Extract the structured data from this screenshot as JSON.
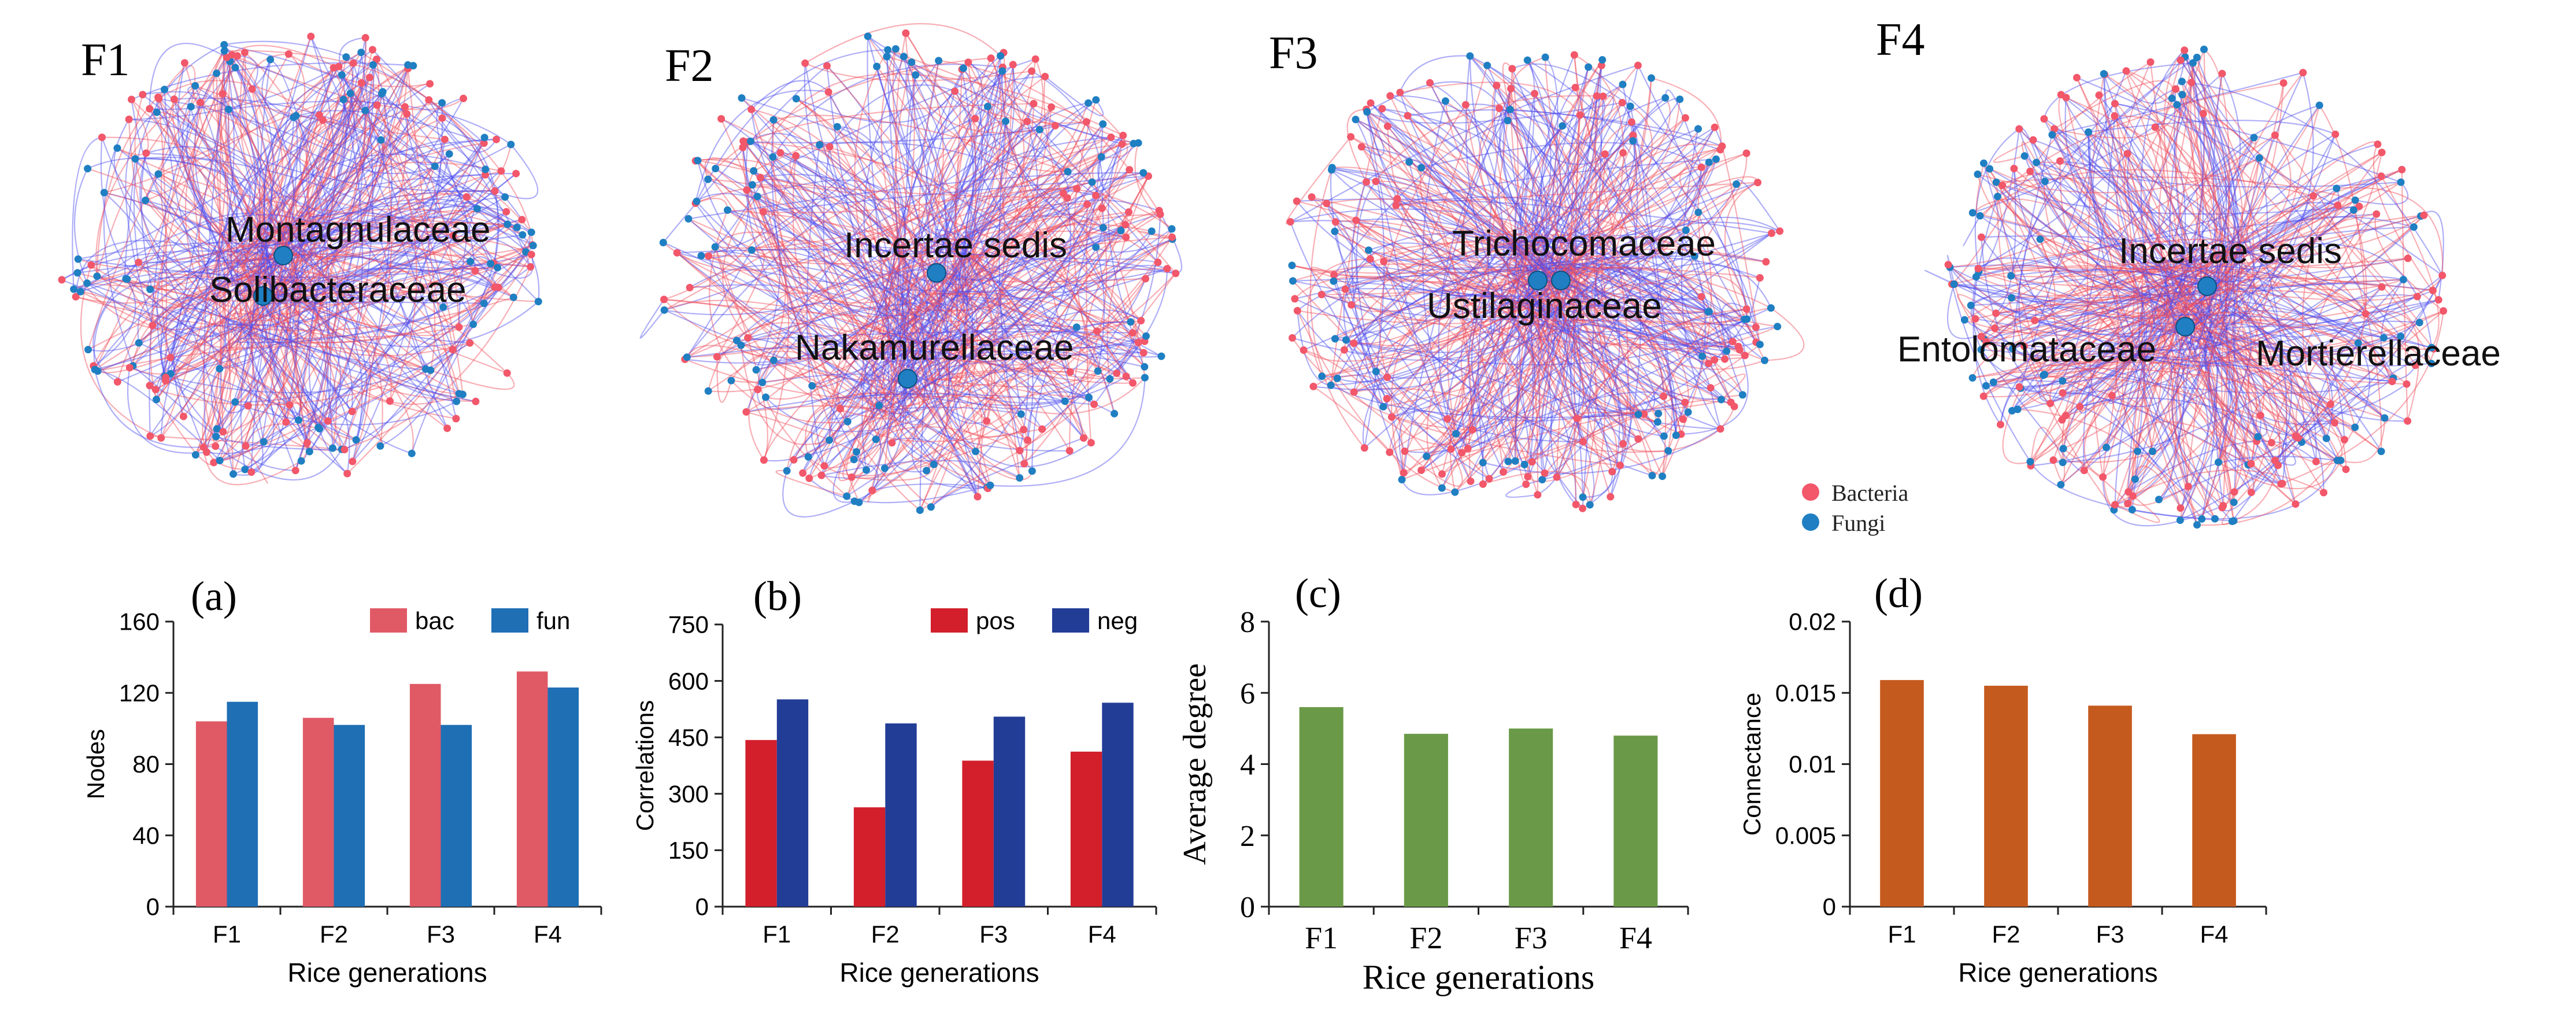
{
  "networks": {
    "panels": [
      {
        "label": "F1",
        "hubs": [
          "Montagnulaceae",
          "Solibacteraceae"
        ]
      },
      {
        "label": "F2",
        "hubs": [
          "Incertae sedis",
          "Nakamurellaceae"
        ]
      },
      {
        "label": "F3",
        "hubs": [
          "Trichocomaceae",
          "Ustilaginaceae"
        ]
      },
      {
        "label": "F4",
        "hubs": [
          "Incertae sedis",
          "Entolomataceae",
          "Mortierellaceae"
        ]
      }
    ],
    "legend": [
      {
        "label": "Bacteria",
        "color": "#f2576a"
      },
      {
        "label": "Fungi",
        "color": "#1f7fc2"
      }
    ],
    "edge_colors": {
      "positive": "#f04d5a",
      "negative": "#4c4cf0"
    }
  },
  "chart_data": [
    {
      "panel": "(a)",
      "type": "bar",
      "categories": [
        "F1",
        "F2",
        "F3",
        "F4"
      ],
      "series": [
        {
          "name": "bac",
          "color": "#e05a66",
          "values": [
            104,
            106,
            125,
            132
          ]
        },
        {
          "name": "fun",
          "color": "#1f6fb5",
          "values": [
            115,
            102,
            102,
            123
          ]
        }
      ],
      "xlabel": "Rice generations",
      "ylabel": "Nodes",
      "ylim": [
        0,
        160
      ],
      "yticks": [
        "0",
        "40",
        "80",
        "120",
        "160"
      ]
    },
    {
      "panel": "(b)",
      "type": "bar",
      "categories": [
        "F1",
        "F2",
        "F3",
        "F4"
      ],
      "series": [
        {
          "name": "pos",
          "color": "#d21f2b",
          "values": [
            443,
            264,
            388,
            412
          ]
        },
        {
          "name": "neg",
          "color": "#223d96",
          "values": [
            551,
            487,
            505,
            542
          ]
        }
      ],
      "xlabel": "Rice generations",
      "ylabel": "Correlations",
      "ylim": [
        0,
        750
      ],
      "yticks": [
        "0",
        "150",
        "300",
        "450",
        "600",
        "750"
      ]
    },
    {
      "panel": "(c)",
      "type": "bar",
      "categories": [
        "F1",
        "F2",
        "F3",
        "F4"
      ],
      "series": [
        {
          "name": "Average degree",
          "color": "#6a9a48",
          "values": [
            5.6,
            4.85,
            5.0,
            4.8
          ]
        }
      ],
      "xlabel": "Rice generations",
      "ylabel": "Average degree",
      "ylim": [
        0,
        8
      ],
      "yticks": [
        "0",
        "2",
        "4",
        "6",
        "8"
      ]
    },
    {
      "panel": "(d)",
      "type": "bar",
      "categories": [
        "F1",
        "F2",
        "F3",
        "F4"
      ],
      "series": [
        {
          "name": "Connectance",
          "color": "#c55a1e",
          "values": [
            0.0159,
            0.0155,
            0.0141,
            0.0121
          ]
        }
      ],
      "xlabel": "Rice generations",
      "ylabel": "Connectance",
      "ylim": [
        0,
        0.02
      ],
      "yticks": [
        "0",
        "0.005",
        "0.01",
        "0.015",
        "0.02"
      ]
    }
  ]
}
